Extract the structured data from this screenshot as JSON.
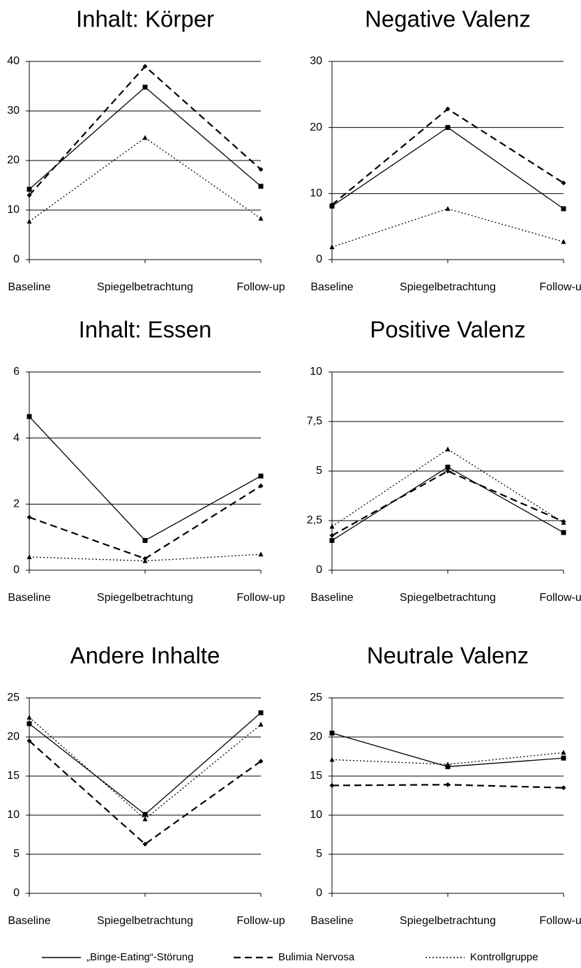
{
  "chart_data": [
    {
      "type": "line",
      "title": "Inhalt: Körper",
      "categories": [
        "Baseline",
        "Spiegelbetrachtung",
        "Follow-up"
      ],
      "ylim": [
        0,
        40
      ],
      "yticks": [
        0,
        10,
        20,
        30,
        40
      ],
      "grid": true,
      "series": [
        {
          "values": [
            14.2,
            34.8,
            14.8
          ]
        },
        {
          "values": [
            13,
            39,
            18.2
          ]
        },
        {
          "values": [
            7.7,
            24.6,
            8.3
          ]
        }
      ]
    },
    {
      "type": "line",
      "title": "Negative Valenz",
      "categories": [
        "Baseline",
        "Spiegelbetrachtung",
        "Follow-up"
      ],
      "ylim": [
        0,
        30
      ],
      "yticks": [
        0,
        10,
        20,
        30
      ],
      "grid": true,
      "series": [
        {
          "values": [
            8.1,
            20,
            7.7
          ]
        },
        {
          "values": [
            8.3,
            22.8,
            11.6
          ]
        },
        {
          "values": [
            1.9,
            7.7,
            2.7
          ]
        }
      ]
    },
    {
      "type": "line",
      "title": "Inhalt: Essen",
      "categories": [
        "Baseline",
        "Spiegelbetrachtung",
        "Follow-up"
      ],
      "ylim": [
        0,
        6
      ],
      "yticks": [
        0,
        2,
        4,
        6
      ],
      "grid": true,
      "series": [
        {
          "values": [
            4.65,
            0.9,
            2.85
          ]
        },
        {
          "values": [
            1.6,
            0.35,
            2.55
          ]
        },
        {
          "values": [
            0.4,
            0.28,
            0.48
          ]
        }
      ]
    },
    {
      "type": "line",
      "title": "Positive Valenz",
      "categories": [
        "Baseline",
        "Spiegelbetrachtung",
        "Follow-up"
      ],
      "ylim": [
        0,
        10
      ],
      "yticks": [
        0,
        {
          "value": 2.5,
          "label": "2,5"
        },
        5,
        {
          "value": 7.5,
          "label": "7,5"
        },
        10
      ],
      "grid": true,
      "series": [
        {
          "values": [
            1.5,
            5.2,
            1.9
          ]
        },
        {
          "values": [
            1.75,
            5.0,
            2.45
          ]
        },
        {
          "values": [
            2.2,
            6.1,
            2.4
          ]
        }
      ]
    },
    {
      "type": "line",
      "title": "Andere Inhalte",
      "categories": [
        "Baseline",
        "Spiegelbetrachtung",
        "Follow-up"
      ],
      "ylim": [
        0,
        25
      ],
      "yticks": [
        0,
        5,
        10,
        15,
        20,
        25
      ],
      "grid": true,
      "series": [
        {
          "values": [
            21.7,
            10.1,
            23.1
          ]
        },
        {
          "values": [
            19.5,
            6.3,
            16.9
          ]
        },
        {
          "values": [
            22.5,
            9.5,
            21.6
          ]
        }
      ]
    },
    {
      "type": "line",
      "title": "Neutrale Valenz",
      "categories": [
        "Baseline",
        "Spiegelbetrachtung",
        "Follow-up"
      ],
      "ylim": [
        0,
        25
      ],
      "yticks": [
        0,
        5,
        10,
        15,
        20,
        25
      ],
      "grid": true,
      "series": [
        {
          "values": [
            20.5,
            16.2,
            17.3
          ]
        },
        {
          "values": [
            13.8,
            13.9,
            13.5
          ]
        },
        {
          "values": [
            17.1,
            16.5,
            18
          ]
        }
      ]
    }
  ],
  "legend": [
    {
      "name": "„Binge-Eating“-Störung",
      "dash": "solid",
      "marker": "square",
      "color": "#000000"
    },
    {
      "name": "Bulimia Nervosa",
      "dash": "dashed",
      "marker": "diamond",
      "color": "#000000"
    },
    {
      "name": "Kontrollgruppe",
      "dash": "dotted",
      "marker": "triangle",
      "color": "#000000"
    }
  ]
}
